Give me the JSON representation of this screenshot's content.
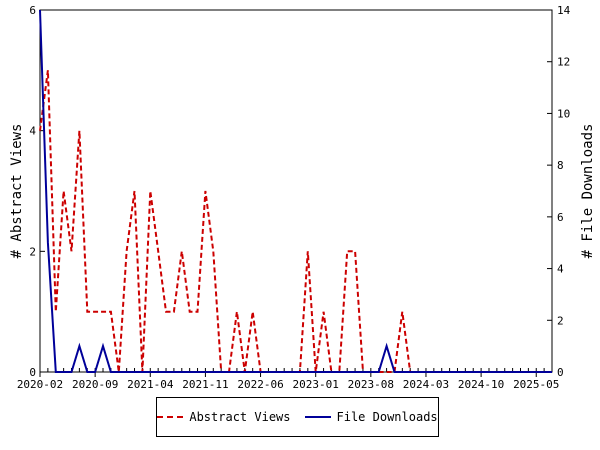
{
  "chart_data": {
    "type": "line",
    "xlabel": "",
    "ylabel": "# Abstract Views",
    "y2label": "# File Downloads",
    "ylim": [
      0,
      6
    ],
    "y2lim": [
      0,
      14
    ],
    "yticks": [
      0,
      2,
      4,
      6
    ],
    "y2ticks": [
      0,
      2,
      4,
      6,
      8,
      10,
      12,
      14
    ],
    "xlim": [
      "2020-02",
      "2025-07"
    ],
    "xtick_labels": [
      "2020-02",
      "2020-09",
      "2021-04",
      "2021-11",
      "2022-06",
      "2023-01",
      "2023-08",
      "2024-03",
      "2024-10",
      "2025-05"
    ],
    "grid": false,
    "legend_position": "bottom-center",
    "series": [
      {
        "name": "Abstract Views",
        "axis": "left",
        "color": "#cc0000",
        "style": "dashed",
        "x": [
          "2020-02",
          "2020-03",
          "2020-04",
          "2020-05",
          "2020-06",
          "2020-07",
          "2020-08",
          "2020-09",
          "2020-10",
          "2020-11",
          "2020-12",
          "2021-01",
          "2021-02",
          "2021-03",
          "2021-04",
          "2021-05",
          "2021-06",
          "2021-07",
          "2021-08",
          "2021-09",
          "2021-10",
          "2021-11",
          "2021-12",
          "2022-01",
          "2022-02",
          "2022-03",
          "2022-04",
          "2022-05",
          "2022-06",
          "2022-07",
          "2022-08",
          "2022-09",
          "2022-10",
          "2022-11",
          "2022-12",
          "2023-01",
          "2023-02",
          "2023-03",
          "2023-04",
          "2023-05",
          "2023-06",
          "2023-07",
          "2023-08",
          "2023-09",
          "2023-10",
          "2023-11",
          "2023-12",
          "2024-01",
          "2024-02",
          "2024-03",
          "2024-04",
          "2024-05",
          "2024-06",
          "2024-07",
          "2024-08",
          "2024-09",
          "2024-10",
          "2024-11",
          "2024-12",
          "2025-01",
          "2025-02",
          "2025-03",
          "2025-04",
          "2025-05",
          "2025-06",
          "2025-07"
        ],
        "y": [
          4,
          5,
          1,
          3,
          2,
          4,
          1,
          1,
          1,
          1,
          0,
          2,
          3,
          0,
          3,
          2,
          1,
          1,
          2,
          1,
          1,
          3,
          2,
          0,
          0,
          1,
          0,
          1,
          0,
          0,
          0,
          0,
          0,
          0,
          2,
          0,
          1,
          0,
          0,
          2,
          2,
          0,
          0,
          0,
          0,
          0,
          1,
          0,
          0,
          0,
          0,
          0,
          0,
          0,
          0,
          0,
          0,
          0,
          0,
          0,
          0,
          0,
          0,
          0,
          0,
          0
        ]
      },
      {
        "name": "File Downloads",
        "axis": "right",
        "color": "#000099",
        "style": "solid",
        "x": [
          "2020-02",
          "2020-03",
          "2020-04",
          "2020-05",
          "2020-06",
          "2020-07",
          "2020-08",
          "2020-09",
          "2020-10",
          "2020-11",
          "2020-12",
          "2021-01",
          "2021-02",
          "2021-03",
          "2021-04",
          "2021-05",
          "2021-06",
          "2021-07",
          "2021-08",
          "2021-09",
          "2021-10",
          "2021-11",
          "2021-12",
          "2022-01",
          "2022-02",
          "2022-03",
          "2022-04",
          "2022-05",
          "2022-06",
          "2022-07",
          "2022-08",
          "2022-09",
          "2022-10",
          "2022-11",
          "2022-12",
          "2023-01",
          "2023-02",
          "2023-03",
          "2023-04",
          "2023-05",
          "2023-06",
          "2023-07",
          "2023-08",
          "2023-09",
          "2023-10",
          "2023-11",
          "2023-12",
          "2024-01",
          "2024-02",
          "2024-03",
          "2024-04",
          "2024-05",
          "2024-06",
          "2024-07",
          "2024-08",
          "2024-09",
          "2024-10",
          "2024-11",
          "2024-12",
          "2025-01",
          "2025-02",
          "2025-03",
          "2025-04",
          "2025-05",
          "2025-06",
          "2025-07"
        ],
        "y": [
          14,
          5,
          0,
          0,
          0,
          1,
          0,
          0,
          1,
          0,
          0,
          0,
          0,
          0,
          0,
          0,
          0,
          0,
          0,
          0,
          0,
          0,
          0,
          0,
          0,
          0,
          0,
          0,
          0,
          0,
          0,
          0,
          0,
          0,
          0,
          0,
          0,
          0,
          0,
          0,
          0,
          0,
          0,
          0,
          1,
          0,
          0,
          0,
          0,
          0,
          0,
          0,
          0,
          0,
          0,
          0,
          0,
          0,
          0,
          0,
          0,
          0,
          0,
          0,
          0,
          0
        ]
      }
    ]
  }
}
